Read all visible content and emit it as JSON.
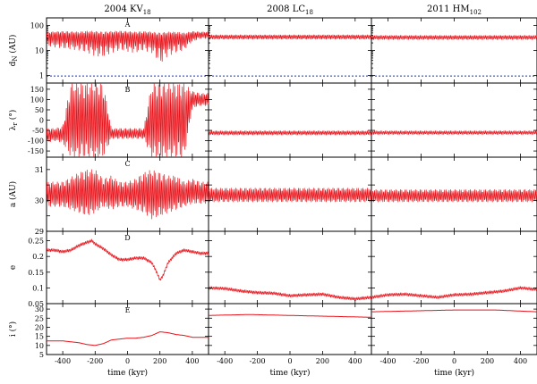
{
  "chart_data": {
    "type": "line",
    "columns": [
      {
        "name": "2004 KV",
        "sub": "18"
      },
      {
        "name": "2008 LC",
        "sub": "18"
      },
      {
        "name": "2011 HM",
        "sub": "102"
      }
    ],
    "x_label": "time (kyr)",
    "x_range": [
      -500,
      500
    ],
    "x_ticks": [
      -400,
      -200,
      0,
      200,
      400
    ],
    "colors": {
      "series": "#e8141c",
      "reference": "#1a2ccf"
    },
    "panels": [
      {
        "letter": "A",
        "ylabel": "d",
        "ylabel_sub": "N",
        "ylabel_rest": " (AU)",
        "scale": "log",
        "ylim": [
          0.5,
          200
        ],
        "y_ticks": [
          1,
          10,
          100
        ],
        "y_tick_labels": [
          "1",
          "10",
          "100"
        ],
        "reference_line": 0.95,
        "series": [
          {
            "x": [
              -500,
              -400,
              -300,
              -250,
              -200,
              -150,
              -100,
              -50,
              0,
              50,
              100,
              150,
              200,
              250,
              300,
              350,
              400,
              450,
              500
            ],
            "y": [
              40,
              42,
              40,
              45,
              40,
              30,
              40,
              42,
              38,
              40,
              42,
              40,
              15,
              30,
              40,
              25,
              42,
              40,
              40
            ],
            "lo": [
              15,
              12,
              10,
              8,
              6,
              5,
              8,
              10,
              9,
              8,
              10,
              8,
              2,
              6,
              8,
              10,
              22,
              30,
              30
            ],
            "hi": [
              55,
              58,
              55,
              60,
              58,
              55,
              58,
              60,
              58,
              55,
              58,
              55,
              50,
              55,
              55,
              50,
              58,
              55,
              55
            ]
          },
          {
            "x": [
              -500,
              -250,
              0,
              250,
              500
            ],
            "y": [
              35,
              36,
              35,
              36,
              35
            ],
            "lo": [
              28,
              28,
              28,
              28,
              28
            ],
            "hi": [
              42,
              42,
              42,
              42,
              42
            ]
          },
          {
            "x": [
              -500,
              -250,
              0,
              250,
              500
            ],
            "y": [
              33,
              34,
              33,
              34,
              33
            ],
            "lo": [
              27,
              27,
              27,
              27,
              27
            ],
            "hi": [
              40,
              40,
              40,
              40,
              40
            ]
          }
        ]
      },
      {
        "letter": "B",
        "ylabel": "λ",
        "ylabel_sub": "r",
        "ylabel_rest": " (°)",
        "scale": "linear",
        "ylim": [
          -180,
          180
        ],
        "y_ticks": [
          -150,
          -100,
          -50,
          0,
          50,
          100,
          150
        ],
        "y_tick_labels": [
          "-150",
          "-100",
          "-50",
          "0",
          "50",
          "100",
          "150"
        ],
        "series": [
          {
            "x": [
              -500,
              -450,
              -400,
              -350,
              -300,
              -250,
              -200,
              -150,
              -100,
              -50,
              0,
              50,
              100,
              150,
              200,
              250,
              300,
              350,
              400,
              450,
              500
            ],
            "y": [
              -70,
              -65,
              -60,
              -70,
              -65,
              0,
              -60,
              20,
              -60,
              -65,
              -60,
              -60,
              -60,
              -60,
              0,
              40,
              -20,
              60,
              80,
              100,
              100
            ],
            "lo": [
              -110,
              -100,
              -110,
              -180,
              -180,
              -180,
              -180,
              -180,
              -90,
              -90,
              -90,
              -90,
              -90,
              -180,
              -180,
              -180,
              -180,
              -180,
              60,
              70,
              70
            ],
            "hi": [
              -40,
              -40,
              -30,
              180,
              180,
              180,
              180,
              180,
              -40,
              -40,
              -40,
              -40,
              -40,
              180,
              180,
              180,
              180,
              180,
              140,
              130,
              130
            ]
          },
          {
            "x": [
              -500,
              -250,
              0,
              250,
              500
            ],
            "y": [
              -62,
              -62,
              -62,
              -62,
              -62
            ],
            "lo": [
              -72,
              -72,
              -72,
              -72,
              -72
            ],
            "hi": [
              -52,
              -52,
              -52,
              -52,
              -52
            ]
          },
          {
            "x": [
              -500,
              -250,
              0,
              250,
              500
            ],
            "y": [
              -61,
              -61,
              -61,
              -61,
              -61
            ],
            "lo": [
              -70,
              -70,
              -70,
              -70,
              -70
            ],
            "hi": [
              -52,
              -52,
              -52,
              -52,
              -52
            ]
          }
        ]
      },
      {
        "letter": "C",
        "ylabel": "a (AU)",
        "ylabel_sub": "",
        "ylabel_rest": "",
        "scale": "linear",
        "ylim": [
          29,
          31.4
        ],
        "y_ticks": [
          29,
          29.5,
          30,
          30.5,
          31
        ],
        "y_tick_labels": [
          "29",
          "",
          "30",
          "",
          "31"
        ],
        "series": [
          {
            "x": [
              -500,
              -400,
              -300,
              -250,
              -200,
              -150,
              -100,
              -50,
              0,
              50,
              100,
              150,
              200,
              250,
              300,
              350,
              400,
              450,
              500
            ],
            "y": [
              30.2,
              30.2,
              30.3,
              30.4,
              30.3,
              30.2,
              30.3,
              30.2,
              30.2,
              30.2,
              30.3,
              30.4,
              30.2,
              30.2,
              30.3,
              30.2,
              30.2,
              30.2,
              30.2
            ],
            "lo": [
              29.8,
              29.8,
              29.6,
              29.5,
              29.6,
              29.8,
              29.7,
              29.8,
              29.8,
              29.7,
              29.6,
              29.4,
              29.5,
              29.6,
              29.7,
              29.8,
              29.9,
              29.9,
              29.9
            ],
            "hi": [
              30.6,
              30.6,
              30.9,
              31.0,
              31.0,
              30.7,
              30.8,
              30.6,
              30.6,
              30.7,
              30.9,
              31.0,
              30.9,
              30.8,
              30.8,
              30.6,
              30.7,
              30.6,
              30.6
            ]
          },
          {
            "x": [
              -500,
              -250,
              0,
              250,
              500
            ],
            "y": [
              30.15,
              30.15,
              30.15,
              30.15,
              30.15
            ],
            "lo": [
              29.95,
              29.95,
              29.95,
              29.95,
              29.95
            ],
            "hi": [
              30.4,
              30.4,
              30.4,
              30.4,
              30.4
            ]
          },
          {
            "x": [
              -500,
              -250,
              0,
              250,
              500
            ],
            "y": [
              30.12,
              30.12,
              30.12,
              30.12,
              30.12
            ],
            "lo": [
              29.95,
              29.95,
              29.95,
              29.95,
              29.95
            ],
            "hi": [
              30.35,
              30.35,
              30.35,
              30.35,
              30.35
            ]
          }
        ]
      },
      {
        "letter": "D",
        "ylabel": "e",
        "ylabel_sub": "",
        "ylabel_rest": "",
        "scale": "linear",
        "ylim": [
          0.05,
          0.28
        ],
        "y_ticks": [
          0.05,
          0.1,
          0.15,
          0.2,
          0.25
        ],
        "y_tick_labels": [
          "0.05",
          "0.1",
          "0.15",
          "0.2",
          "0.25"
        ],
        "series": [
          {
            "x": [
              -500,
              -450,
              -400,
              -350,
              -300,
              -250,
              -220,
              -200,
              -150,
              -100,
              -50,
              0,
              50,
              100,
              150,
              180,
              200,
              220,
              250,
              300,
              350,
              400,
              450,
              500
            ],
            "y": [
              0.22,
              0.22,
              0.215,
              0.22,
              0.235,
              0.245,
              0.25,
              0.24,
              0.225,
              0.205,
              0.19,
              0.19,
              0.195,
              0.195,
              0.18,
              0.15,
              0.125,
              0.14,
              0.18,
              0.21,
              0.22,
              0.215,
              0.21,
              0.21
            ],
            "lo": [
              0.215,
              0.215,
              0.21,
              0.215,
              0.23,
              0.24,
              0.245,
              0.235,
              0.22,
              0.2,
              0.185,
              0.185,
              0.19,
              0.19,
              0.175,
              0.145,
              0.12,
              0.135,
              0.175,
              0.205,
              0.215,
              0.21,
              0.205,
              0.205
            ],
            "hi": [
              0.225,
              0.225,
              0.22,
              0.225,
              0.24,
              0.25,
              0.255,
              0.245,
              0.23,
              0.21,
              0.195,
              0.195,
              0.2,
              0.2,
              0.185,
              0.155,
              0.13,
              0.145,
              0.185,
              0.215,
              0.225,
              0.22,
              0.215,
              0.215
            ]
          },
          {
            "x": [
              -500,
              -400,
              -300,
              -200,
              -100,
              0,
              100,
              200,
              300,
              400,
              500
            ],
            "y": [
              0.1,
              0.098,
              0.09,
              0.085,
              0.083,
              0.075,
              0.078,
              0.08,
              0.07,
              0.065,
              0.07
            ],
            "lo": [
              0.095,
              0.093,
              0.085,
              0.08,
              0.078,
              0.07,
              0.073,
              0.075,
              0.065,
              0.06,
              0.065
            ],
            "hi": [
              0.105,
              0.103,
              0.095,
              0.09,
              0.088,
              0.08,
              0.083,
              0.085,
              0.075,
              0.07,
              0.075
            ]
          },
          {
            "x": [
              -500,
              -400,
              -300,
              -200,
              -100,
              0,
              100,
              200,
              300,
              400,
              500
            ],
            "y": [
              0.07,
              0.078,
              0.08,
              0.075,
              0.07,
              0.078,
              0.08,
              0.085,
              0.09,
              0.1,
              0.095
            ],
            "lo": [
              0.065,
              0.073,
              0.075,
              0.07,
              0.065,
              0.073,
              0.075,
              0.08,
              0.085,
              0.095,
              0.09
            ],
            "hi": [
              0.075,
              0.083,
              0.085,
              0.08,
              0.075,
              0.083,
              0.085,
              0.09,
              0.095,
              0.105,
              0.1
            ]
          }
        ]
      },
      {
        "letter": "E",
        "ylabel": "i",
        "ylabel_sub": "",
        "ylabel_rest": " (°)",
        "scale": "linear",
        "ylim": [
          5,
          33
        ],
        "y_ticks": [
          5,
          10,
          15,
          20,
          25,
          30
        ],
        "y_tick_labels": [
          "5",
          "10",
          "15",
          "20",
          "25",
          "30"
        ],
        "series": [
          {
            "x": [
              -500,
              -400,
              -300,
              -250,
              -200,
              -150,
              -100,
              -50,
              0,
              50,
              100,
              150,
              200,
              250,
              300,
              350,
              400,
              450,
              500
            ],
            "y": [
              12.5,
              12.5,
              11.5,
              10.5,
              10,
              11,
              13,
              13.5,
              14,
              14,
              14.5,
              15.5,
              17.5,
              17,
              16,
              15.5,
              14.5,
              14.5,
              14.5
            ],
            "lo": [
              12.5,
              12.5,
              11.5,
              10.5,
              10,
              11,
              13,
              13.5,
              14,
              14,
              14.5,
              15.5,
              17.5,
              17,
              16,
              15.5,
              14.5,
              14.5,
              14.5
            ],
            "hi": [
              12.5,
              12.5,
              11.5,
              10.5,
              10,
              11,
              13,
              13.5,
              14,
              14,
              14.5,
              15.5,
              17.5,
              17,
              16,
              15.5,
              14.5,
              14.5,
              14.5
            ]
          },
          {
            "x": [
              -500,
              -250,
              0,
              250,
              500
            ],
            "y": [
              26.5,
              27,
              26.5,
              26,
              25.5
            ],
            "lo": [
              26.5,
              27,
              26.5,
              26,
              25.5
            ],
            "hi": [
              26.5,
              27,
              26.5,
              26,
              25.5
            ]
          },
          {
            "x": [
              -500,
              -250,
              0,
              250,
              500
            ],
            "y": [
              28.5,
              29,
              29.5,
              29.5,
              28.5
            ],
            "lo": [
              28.5,
              29,
              29.5,
              29.5,
              28.5
            ],
            "hi": [
              28.5,
              29,
              29.5,
              29.5,
              28.5
            ]
          }
        ]
      }
    ]
  }
}
